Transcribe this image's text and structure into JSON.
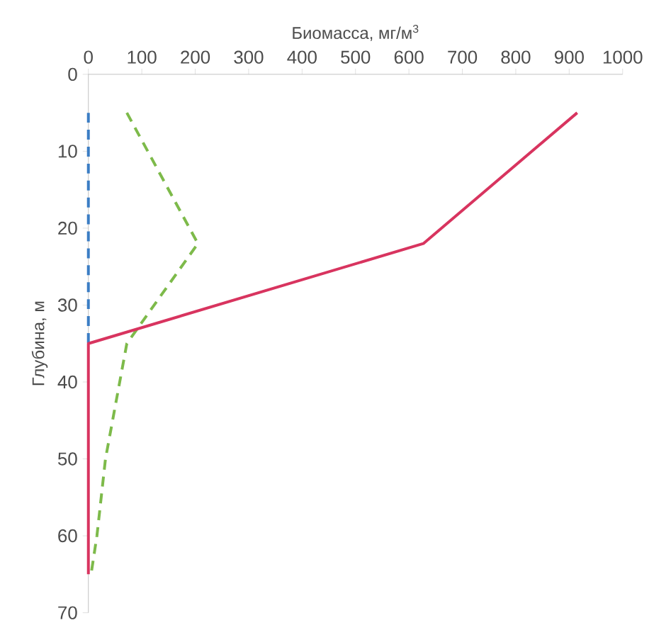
{
  "chart_data": {
    "type": "line",
    "xlabel": "Биомасса, мг/м$^{3}$",
    "ylabel": "Глубина, м",
    "xlim": [
      0,
      1000
    ],
    "xticks": [
      0,
      100,
      200,
      300,
      400,
      500,
      600,
      700,
      800,
      900,
      1000
    ],
    "ylim": [
      70,
      0
    ],
    "yticks": [
      0,
      10,
      20,
      30,
      40,
      50,
      60,
      70
    ],
    "grid": false,
    "marker": "none",
    "series": [
      {
        "color": "#3b7dc4",
        "line_style": "dashed",
        "x": [
          0,
          0
        ],
        "values": [
          5,
          35
        ]
      },
      {
        "color": "#7dba4a",
        "line_style": "dashed",
        "x": [
          72,
          205,
          72,
          32,
          16,
          5
        ],
        "values": [
          5,
          22,
          35,
          50,
          60,
          65
        ]
      },
      {
        "color": "#d8345f",
        "line_style": "solid",
        "x": [
          915,
          627,
          0,
          0
        ],
        "values": [
          5,
          22,
          35,
          65
        ]
      }
    ]
  }
}
